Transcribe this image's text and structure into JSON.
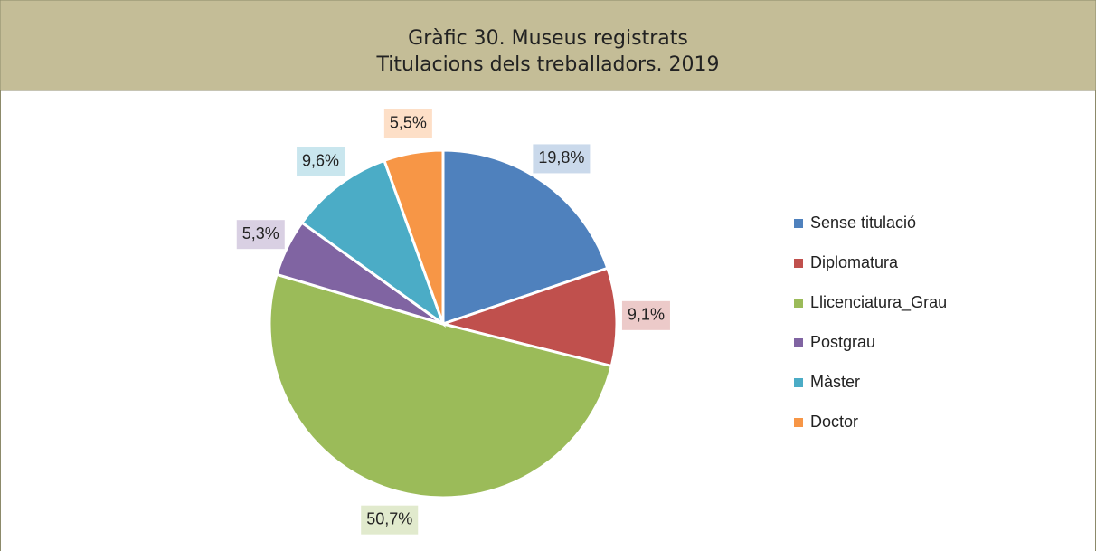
{
  "chart_data": {
    "type": "pie",
    "title": "Gràfic 30. Museus registrats",
    "subtitle": "Titulacions dels treballadors. 2019",
    "categories": [
      "Sense titulació",
      "Diplomatura",
      "Llicenciatura_Grau",
      "Postgrau",
      "Màster",
      "Doctor"
    ],
    "values": [
      19.8,
      9.1,
      50.7,
      5.3,
      9.6,
      5.5
    ],
    "value_labels": [
      "19,8%",
      "9,1%",
      "50,7%",
      "5,3%",
      "9,6%",
      "5,5%"
    ],
    "colors": [
      "#4f81bd",
      "#c0504d",
      "#9bbb59",
      "#8064a2",
      "#4bacc6",
      "#f79646"
    ],
    "legend": "right"
  }
}
